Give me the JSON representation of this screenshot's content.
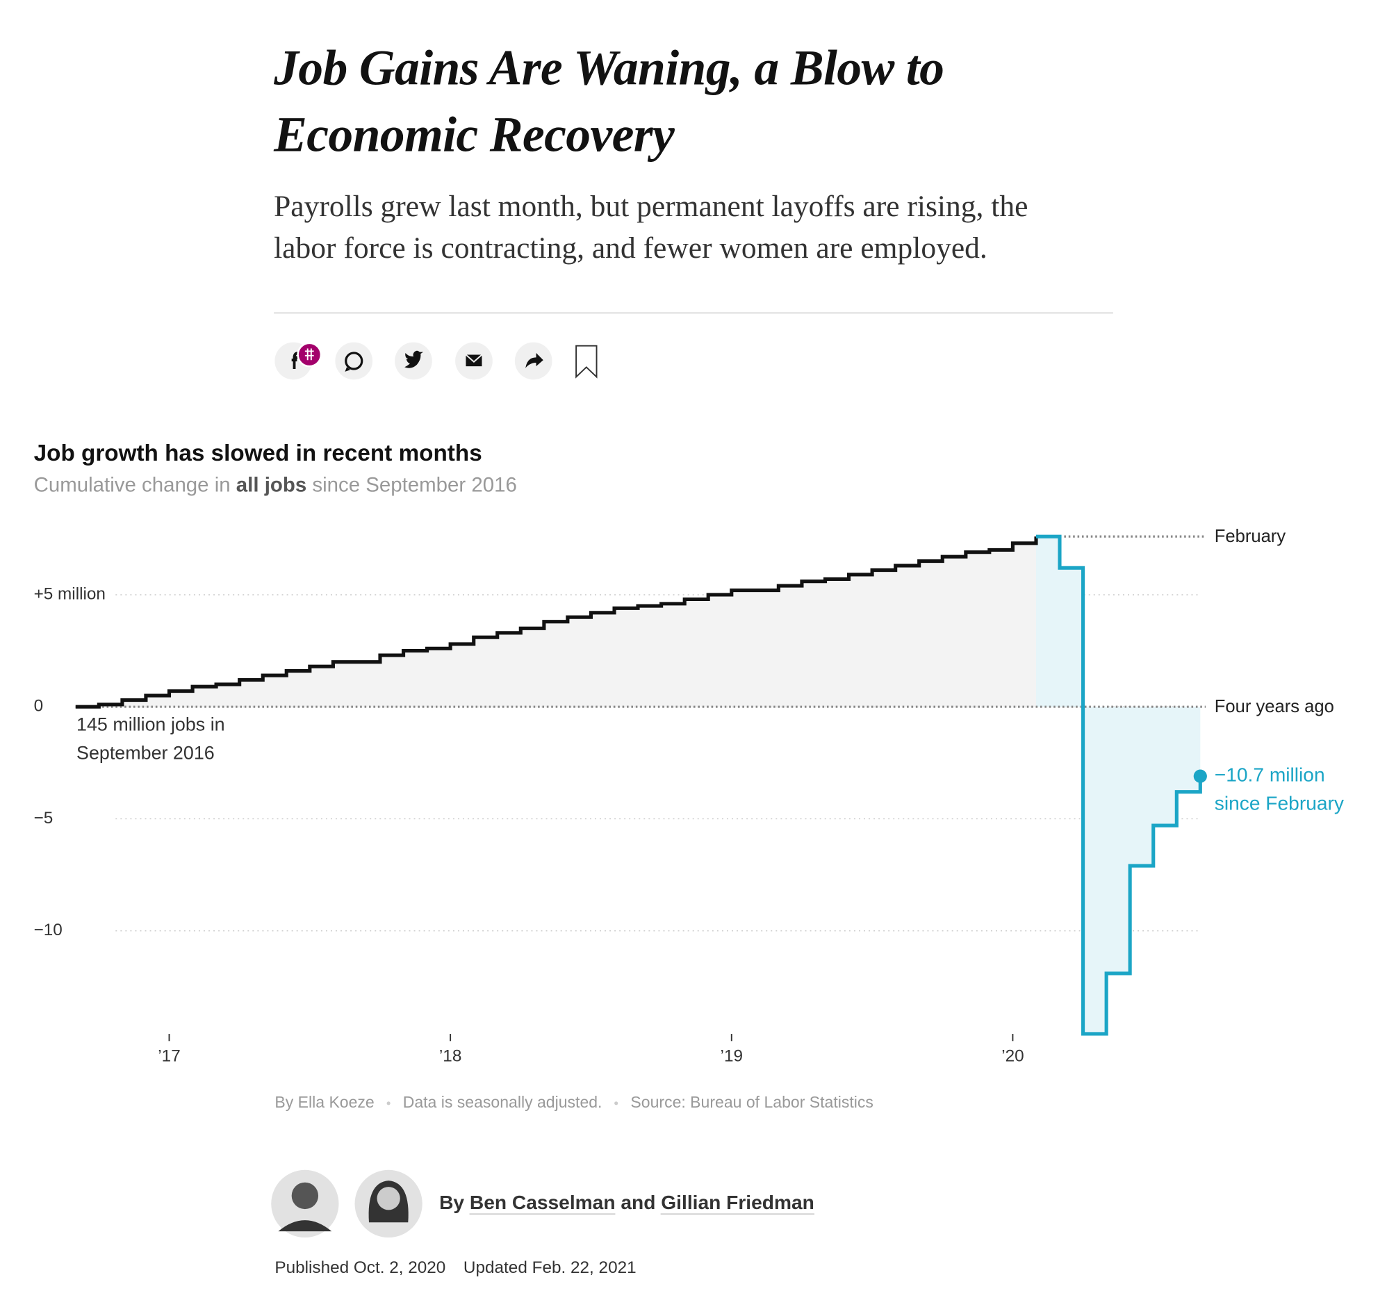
{
  "header": {
    "headline": "Job Gains Are Waning, a Blow to Economic Recovery",
    "summary": "Payrolls grew last month, but permanent layoffs are rising, the labor force is contracting, and fewer women are employed."
  },
  "chart_data": {
    "type": "step",
    "title": "Job growth has slowed in recent months",
    "subtitle": [
      "Cumulative change in",
      "all jobs",
      "since September 2016"
    ],
    "x": [
      2016.667,
      2016.75,
      2016.833,
      2016.917,
      2017,
      2017.083,
      2017.167,
      2017.25,
      2017.333,
      2017.417,
      2017.5,
      2017.583,
      2017.667,
      2017.75,
      2017.833,
      2017.917,
      2018,
      2018.083,
      2018.167,
      2018.25,
      2018.333,
      2018.417,
      2018.5,
      2018.583,
      2018.667,
      2018.75,
      2018.833,
      2018.917,
      2019,
      2019.083,
      2019.167,
      2019.25,
      2019.333,
      2019.417,
      2019.5,
      2019.583,
      2019.667,
      2019.75,
      2019.833,
      2019.917,
      2020,
      2020.083,
      2020.167,
      2020.25,
      2020.333,
      2020.417,
      2020.5,
      2020.583,
      2020.667
    ],
    "series": [
      {
        "color": "#111111",
        "area_color": "#f3f3f3",
        "values": [
          0,
          0.1,
          0.3,
          0.5,
          0.7,
          0.9,
          1.0,
          1.2,
          1.4,
          1.6,
          1.8,
          2.0,
          2.0,
          2.3,
          2.5,
          2.6,
          2.8,
          3.1,
          3.3,
          3.5,
          3.8,
          4.0,
          4.2,
          4.4,
          4.5,
          4.6,
          4.8,
          5.0,
          5.2,
          5.2,
          5.4,
          5.6,
          5.7,
          5.9,
          6.1,
          6.3,
          6.5,
          6.7,
          6.9,
          7.0,
          7.3,
          7.6,
          null,
          null,
          null,
          null,
          null,
          null,
          null
        ]
      },
      {
        "color": "#1ba5c6",
        "area_color": "#e6f5f9",
        "values": [
          null,
          null,
          null,
          null,
          null,
          null,
          null,
          null,
          null,
          null,
          null,
          null,
          null,
          null,
          null,
          null,
          null,
          null,
          null,
          null,
          null,
          null,
          null,
          null,
          null,
          null,
          null,
          null,
          null,
          null,
          null,
          null,
          null,
          null,
          null,
          null,
          null,
          null,
          null,
          null,
          null,
          7.6,
          6.2,
          -14.6,
          -11.9,
          -7.1,
          -5.3,
          -3.8,
          -3.1
        ]
      }
    ],
    "xlim": [
      2016.667,
      2020.667
    ],
    "xticks": [
      {
        "value": 2017,
        "label": "’17"
      },
      {
        "value": 2018,
        "label": "’18"
      },
      {
        "value": 2019,
        "label": "’19"
      },
      {
        "value": 2020,
        "label": "’20"
      }
    ],
    "ylim": [
      -15,
      8
    ],
    "yticks": [
      {
        "value": 5,
        "label": "+5 million"
      },
      0,
      {
        "value": -5,
        "label": "−5"
      },
      {
        "value": -10,
        "label": "−10"
      }
    ],
    "grid": true,
    "reference_lines": [
      {
        "value": 7.6,
        "label": "February"
      },
      {
        "value": 0,
        "label": "Four years ago"
      }
    ],
    "annotations": [
      {
        "text": "145 million jobs in September 2016"
      },
      {
        "text": "−10.7 million since February"
      }
    ]
  },
  "credits": [
    "By Ella Koeze",
    "Data is seasonally adjusted.",
    "Source: Bureau of Labor Statistics"
  ],
  "byline": {
    "prefix": "By",
    "authors": [
      "Ben Casselman",
      "Gillian Friedman"
    ],
    "joiner": "and"
  },
  "dates": [
    "Published Oct. 2, 2020",
    "Updated Feb. 22, 2021"
  ]
}
